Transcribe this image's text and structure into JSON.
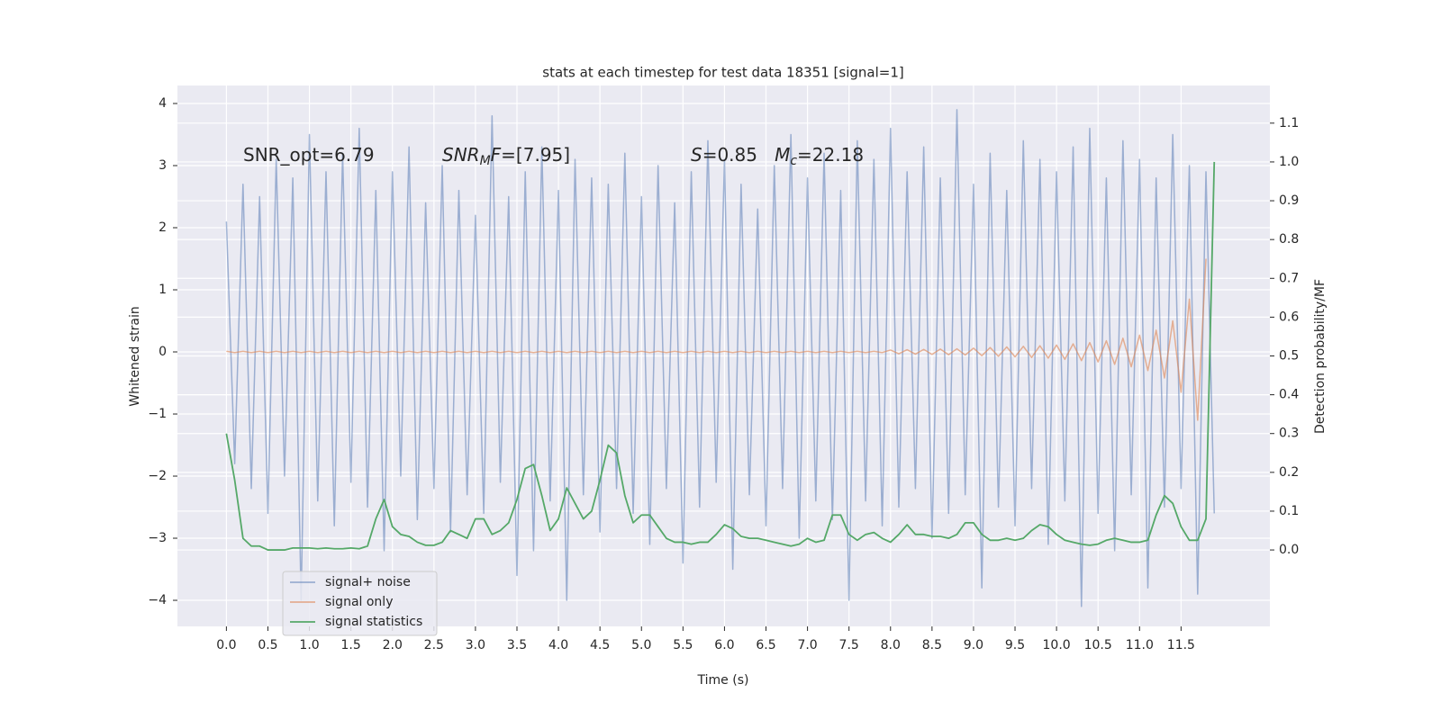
{
  "chart_data": {
    "type": "line",
    "title": "stats at each timestep for test data 18351 [signal=1]",
    "xlabel": "Time (s)",
    "ylabel": "Whitened strain",
    "y2label": "Detection probability/MF",
    "background": "#eaeaf2",
    "grid": true,
    "legend": "lower left",
    "x": [
      0,
      0.1,
      0.2,
      0.3,
      0.4,
      0.5,
      0.6,
      0.7,
      0.8,
      0.9,
      1,
      1.1,
      1.2,
      1.3,
      1.4,
      1.5,
      1.6,
      1.7,
      1.8,
      1.9,
      2,
      2.1,
      2.2,
      2.3,
      2.4,
      2.5,
      2.6,
      2.7,
      2.8,
      2.9,
      3,
      3.1,
      3.2,
      3.3,
      3.4,
      3.5,
      3.6,
      3.7,
      3.8,
      3.9,
      4,
      4.1,
      4.2,
      4.3,
      4.4,
      4.5,
      4.6,
      4.7,
      4.8,
      4.9,
      5,
      5.1,
      5.2,
      5.3,
      5.4,
      5.5,
      5.6,
      5.7,
      5.8,
      5.9,
      6,
      6.1,
      6.2,
      6.3,
      6.4,
      6.5,
      6.6,
      6.7,
      6.8,
      6.9,
      7,
      7.1,
      7.2,
      7.3,
      7.4,
      7.5,
      7.6,
      7.7,
      7.8,
      7.9,
      8,
      8.1,
      8.2,
      8.3,
      8.4,
      8.5,
      8.6,
      8.7,
      8.8,
      8.9,
      9,
      9.1,
      9.2,
      9.3,
      9.4,
      9.5,
      9.6,
      9.7,
      9.8,
      9.9,
      10,
      10.1,
      10.2,
      10.3,
      10.4,
      10.5,
      10.6,
      10.7,
      10.8,
      10.9,
      11,
      11.1,
      11.2,
      11.3,
      11.4,
      11.5,
      11.6,
      11.7,
      11.8,
      11.9
    ],
    "series": [
      {
        "name": "signal+ noise",
        "color": "#4c72b0",
        "opacity": 0.5,
        "values": [
          2.1,
          -1.8,
          2.7,
          -2.2,
          2.5,
          -2.6,
          3.1,
          -2.0,
          2.8,
          -4.0,
          3.5,
          -2.4,
          2.9,
          -2.8,
          3.2,
          -2.1,
          3.6,
          -2.5,
          2.6,
          -3.2,
          2.9,
          -2.0,
          3.3,
          -2.7,
          2.4,
          -2.2,
          3.0,
          -2.9,
          2.6,
          -2.3,
          2.2,
          -2.6,
          3.8,
          -2.1,
          2.5,
          -3.6,
          2.9,
          -3.2,
          3.3,
          -2.4,
          2.6,
          -4.0,
          3.1,
          -2.3,
          2.8,
          -2.9,
          2.7,
          -2.2,
          3.2,
          -2.6,
          2.5,
          -3.1,
          3.0,
          -2.2,
          2.4,
          -3.4,
          2.9,
          -2.5,
          3.4,
          -2.1,
          3.1,
          -3.5,
          2.7,
          -2.3,
          2.3,
          -2.8,
          3.0,
          -2.2,
          3.5,
          -3.0,
          2.8,
          -2.4,
          3.2,
          -2.7,
          2.6,
          -4.0,
          3.4,
          -2.4,
          3.1,
          -2.8,
          3.6,
          -2.5,
          2.9,
          -2.2,
          3.3,
          -3.0,
          2.8,
          -2.6,
          3.9,
          -2.3,
          2.7,
          -3.8,
          3.2,
          -2.5,
          2.6,
          -2.8,
          3.4,
          -2.2,
          3.1,
          -3.1,
          2.9,
          -2.4,
          3.3,
          -4.1,
          3.6,
          -2.6,
          2.8,
          -3.2,
          3.4,
          -2.3,
          3.1,
          -3.8,
          2.8,
          -2.5,
          3.5,
          -2.2,
          3.0,
          -3.9,
          2.9,
          -2.6
        ]
      },
      {
        "name": "signal only",
        "color": "#dd8452",
        "opacity": 0.6,
        "values": [
          0.01,
          -0.01,
          0.01,
          -0.01,
          0.01,
          -0.01,
          0.01,
          -0.01,
          0.01,
          -0.01,
          0.01,
          -0.01,
          0.01,
          -0.01,
          0.01,
          -0.01,
          0.01,
          -0.01,
          0.01,
          -0.01,
          0.01,
          -0.01,
          0.01,
          -0.01,
          0.01,
          -0.01,
          0.01,
          -0.01,
          0.01,
          -0.01,
          0.01,
          -0.01,
          0.01,
          -0.01,
          0.01,
          -0.01,
          0.01,
          -0.01,
          0.01,
          -0.01,
          0.01,
          -0.01,
          0.01,
          -0.01,
          0.01,
          -0.01,
          0.01,
          -0.01,
          0.01,
          -0.01,
          0.01,
          -0.01,
          0.01,
          -0.01,
          0.01,
          -0.01,
          0.01,
          -0.01,
          0.01,
          -0.01,
          0.01,
          -0.01,
          0.01,
          -0.01,
          0.01,
          -0.01,
          0.01,
          -0.01,
          0.01,
          -0.01,
          0.01,
          -0.01,
          0.01,
          -0.01,
          0.01,
          -0.01,
          0.01,
          -0.01,
          0.01,
          -0.01,
          0.03,
          -0.03,
          0.035,
          -0.035,
          0.04,
          -0.04,
          0.045,
          -0.045,
          0.05,
          -0.05,
          0.06,
          -0.06,
          0.07,
          -0.07,
          0.08,
          -0.08,
          0.09,
          -0.09,
          0.1,
          -0.1,
          0.11,
          -0.12,
          0.13,
          -0.14,
          0.15,
          -0.16,
          0.18,
          -0.2,
          0.22,
          -0.24,
          0.27,
          -0.3,
          0.35,
          -0.42,
          0.5,
          -0.65,
          0.85,
          -1.1,
          1.5,
          null
        ]
      },
      {
        "name": "signal statistics",
        "color": "#55a868",
        "opacity": 1,
        "axis": "y2",
        "values": [
          0.3,
          0.18,
          0.03,
          0.01,
          0.01,
          0.0,
          0.0,
          0.0,
          0.005,
          0.005,
          0.005,
          0.003,
          0.005,
          0.003,
          0.003,
          0.005,
          0.003,
          0.01,
          0.08,
          0.13,
          0.06,
          0.04,
          0.035,
          0.02,
          0.012,
          0.012,
          0.02,
          0.05,
          0.04,
          0.03,
          0.08,
          0.08,
          0.04,
          0.05,
          0.07,
          0.13,
          0.21,
          0.22,
          0.14,
          0.05,
          0.08,
          0.16,
          0.12,
          0.08,
          0.1,
          0.18,
          0.27,
          0.25,
          0.14,
          0.07,
          0.09,
          0.09,
          0.06,
          0.03,
          0.02,
          0.02,
          0.015,
          0.02,
          0.02,
          0.04,
          0.065,
          0.055,
          0.035,
          0.03,
          0.03,
          0.025,
          0.02,
          0.015,
          0.01,
          0.015,
          0.03,
          0.02,
          0.025,
          0.09,
          0.09,
          0.04,
          0.025,
          0.04,
          0.045,
          0.03,
          0.02,
          0.04,
          0.065,
          0.04,
          0.04,
          0.035,
          0.035,
          0.03,
          0.04,
          0.07,
          0.07,
          0.04,
          0.025,
          0.025,
          0.03,
          0.025,
          0.03,
          0.05,
          0.065,
          0.06,
          0.04,
          0.025,
          0.02,
          0.015,
          0.012,
          0.015,
          0.025,
          0.03,
          0.025,
          0.02,
          0.02,
          0.025,
          0.09,
          0.14,
          0.12,
          0.06,
          0.025,
          0.025,
          0.08,
          1.0
        ]
      }
    ],
    "xlim": [
      -0.59,
      12.57
    ],
    "ylim": [
      -4.42,
      4.29
    ],
    "y2lim": [
      -0.197,
      1.197
    ],
    "xticks": [
      {
        "value": 0,
        "label": "0.0"
      },
      0.5,
      {
        "value": 1,
        "label": "1.0"
      },
      1.5,
      {
        "value": 2,
        "label": "2.0"
      },
      2.5,
      {
        "value": 3,
        "label": "3.0"
      },
      3.5,
      {
        "value": 4,
        "label": "4.0"
      },
      4.5,
      {
        "value": 5,
        "label": "5.0"
      },
      5.5,
      {
        "value": 6,
        "label": "6.0"
      },
      6.5,
      {
        "value": 7,
        "label": "7.0"
      },
      7.5,
      {
        "value": 8,
        "label": "8.0"
      },
      8.5,
      {
        "value": 9,
        "label": "9.0"
      },
      9.5,
      {
        "value": 10,
        "label": "10.0"
      },
      10.5,
      {
        "value": 11,
        "label": "11.0"
      },
      11.5
    ],
    "yticks": [
      {
        "value": -4,
        "label": "−4"
      },
      {
        "value": -3,
        "label": "−3"
      },
      {
        "value": -2,
        "label": "−2"
      },
      {
        "value": -1,
        "label": "−1"
      },
      0,
      1,
      2,
      3,
      4
    ],
    "y2ticks": [
      {
        "value": 0,
        "label": "0.0"
      },
      0.1,
      0.2,
      0.3,
      0.4,
      0.5,
      0.6,
      0.7,
      0.8,
      0.9,
      {
        "value": 1,
        "label": "1.0"
      },
      1.1
    ],
    "annotations": [
      {
        "parts": [
          {
            "text": "SNR_opt=6.79"
          }
        ]
      },
      {
        "parts": [
          {
            "text": "SNR",
            "style": "italic"
          },
          {
            "text": "M",
            "style": "sub"
          },
          {
            "text": "F",
            "style": "italic"
          },
          {
            "text": "=[7.95]"
          }
        ]
      },
      {
        "parts": [
          {
            "text": "S",
            "style": "italic"
          },
          {
            "text": "=0.85   "
          },
          {
            "text": "M",
            "style": "italic"
          },
          {
            "text": "c",
            "style": "sub"
          },
          {
            "text": "=22.18"
          }
        ]
      }
    ]
  }
}
